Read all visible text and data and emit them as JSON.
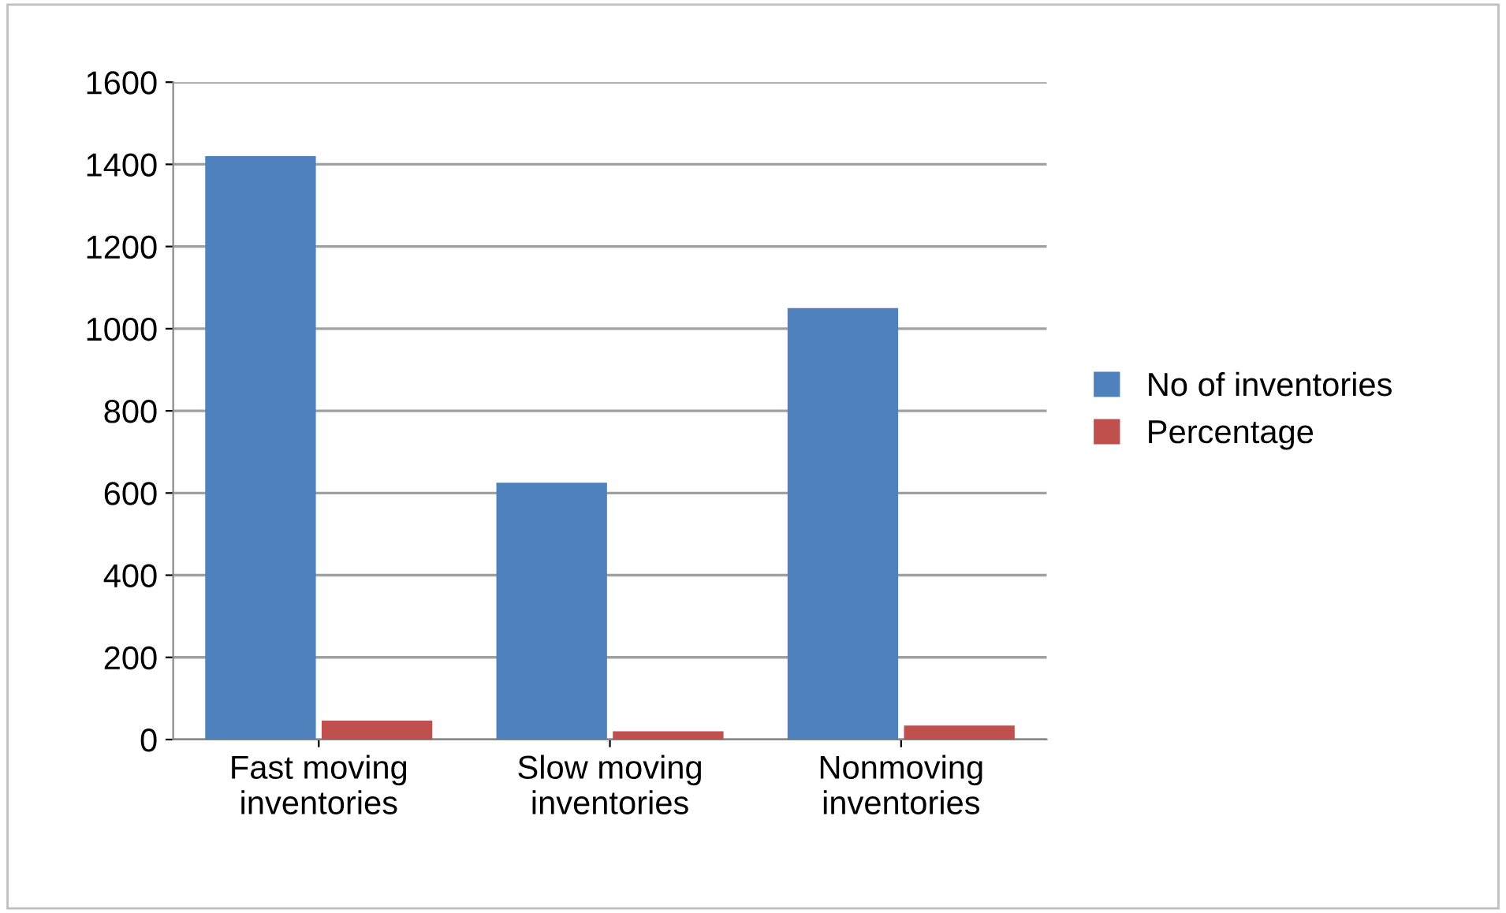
{
  "chart_data": {
    "type": "bar",
    "categories": [
      "Fast moving\ninventories",
      "Slow moving\ninventories",
      "Nonmoving\ninventories"
    ],
    "series": [
      {
        "name": "No of inventories",
        "color": "#4f81bd",
        "values": [
          1420,
          625,
          1050
        ]
      },
      {
        "name": "Percentage",
        "color": "#c0504d",
        "values": [
          46,
          20,
          34
        ]
      }
    ],
    "ylim": [
      0,
      1600
    ],
    "yticks": [
      0,
      200,
      400,
      600,
      800,
      1000,
      1200,
      1400,
      1600
    ],
    "grid": "y",
    "legend": "right"
  }
}
